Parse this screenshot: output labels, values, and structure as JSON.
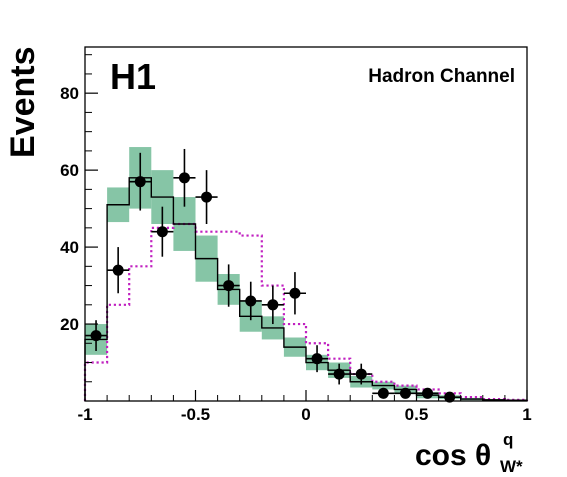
{
  "chart_data": {
    "type": "histogram",
    "title": "",
    "logo": "H1",
    "annotation": "Hadron Channel",
    "ylabel": "Events",
    "xlabel": {
      "main": "cos θ",
      "superscript": "q",
      "subscript": "W*"
    },
    "xlim": [
      -1,
      1
    ],
    "ylim": [
      0,
      92
    ],
    "x_ticks": [
      {
        "value": -1,
        "label": "-1"
      },
      {
        "value": -0.5,
        "label": "-0.5"
      },
      {
        "value": 0,
        "label": "0"
      },
      {
        "value": 0.5,
        "label": "0.5"
      },
      {
        "value": 1,
        "label": "1"
      }
    ],
    "y_ticks": [
      {
        "value": 20,
        "label": "20"
      },
      {
        "value": 40,
        "label": "40"
      },
      {
        "value": 60,
        "label": "60"
      },
      {
        "value": 80,
        "label": "80"
      }
    ],
    "bin_edges": [
      -1.0,
      -0.9,
      -0.8,
      -0.7,
      -0.6,
      -0.5,
      -0.4,
      -0.3,
      -0.2,
      -0.1,
      0.0,
      0.1,
      0.2,
      0.3,
      0.4,
      0.5,
      0.6,
      0.7,
      0.8,
      0.9,
      1.0
    ],
    "series": [
      {
        "kind": "data",
        "style": "points-with-error-bars",
        "color": "#000000",
        "x": [
          -0.95,
          -0.85,
          -0.75,
          -0.65,
          -0.55,
          -0.45,
          -0.35,
          -0.25,
          -0.15,
          -0.05,
          0.05,
          0.15,
          0.25,
          0.35,
          0.45,
          0.55,
          0.65
        ],
        "y": [
          17,
          34,
          57,
          44,
          58,
          53,
          30,
          26,
          25,
          28,
          11,
          7,
          7,
          2,
          2,
          2,
          1
        ],
        "err": [
          4,
          6,
          7.5,
          6.5,
          7.5,
          7,
          5.5,
          5,
          5,
          5.5,
          3.5,
          2.7,
          2.7,
          1.4,
          1.4,
          1.4,
          1
        ]
      },
      {
        "kind": "prediction-solid",
        "style": "step",
        "color": "#000000",
        "values": [
          16,
          51,
          58,
          53,
          46,
          37,
          29,
          22,
          19,
          14,
          10,
          8,
          5,
          4,
          3,
          1.5,
          1,
          0.5,
          0.3,
          0.2
        ]
      },
      {
        "kind": "prediction-uncertainty",
        "style": "band",
        "color": "#86c5a6",
        "values": [
          16,
          51,
          58,
          53,
          46,
          37,
          29,
          22,
          19,
          14,
          10,
          8,
          5,
          4,
          3,
          1.5,
          1,
          0.5,
          0.3,
          0.2
        ],
        "half_width": [
          4,
          4.5,
          8,
          7,
          7,
          6,
          4,
          4,
          3,
          2.5,
          2,
          2,
          1.5,
          1,
          1,
          0.8,
          0.5,
          0.3,
          0.2,
          0.1
        ]
      },
      {
        "kind": "prediction-dotted",
        "style": "step-dotted",
        "color": "#c020c0",
        "values": [
          10,
          25,
          35,
          45,
          46,
          44,
          44,
          43,
          30,
          20,
          15,
          11,
          7,
          5,
          4,
          3,
          2,
          1,
          0.5,
          0.3
        ]
      }
    ],
    "grid": false,
    "legend": "none"
  }
}
